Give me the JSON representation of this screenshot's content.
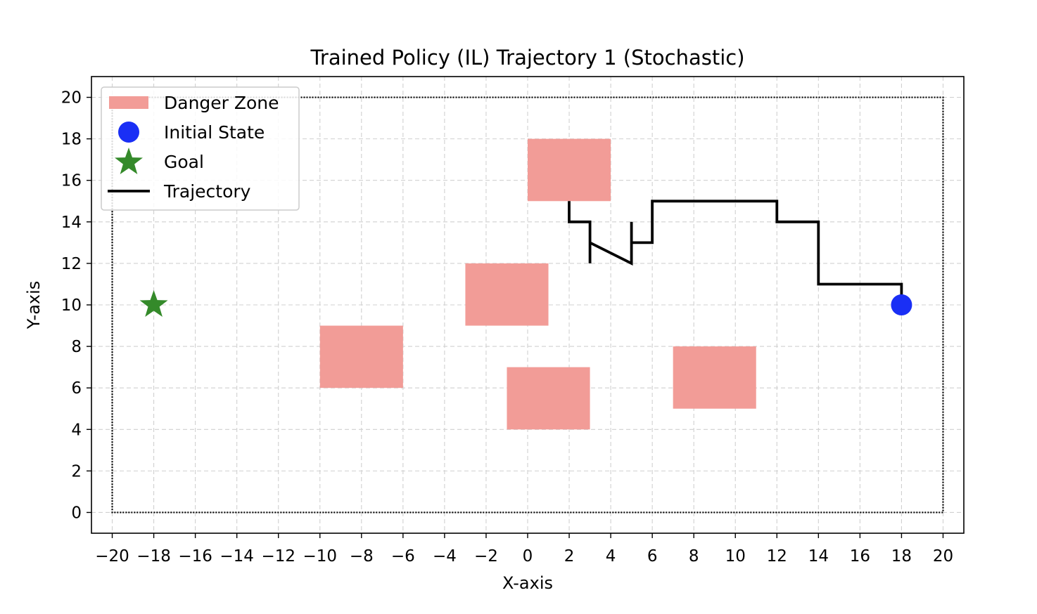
{
  "chart_data": {
    "type": "scatter",
    "title": "Trained Policy (IL) Trajectory 1 (Stochastic)",
    "xlabel": "X-axis",
    "ylabel": "Y-axis",
    "xlim": [
      -21,
      21
    ],
    "ylim": [
      -1,
      21
    ],
    "xticks": [
      -20,
      -18,
      -16,
      -14,
      -12,
      -10,
      -8,
      -6,
      -4,
      -2,
      0,
      2,
      4,
      6,
      8,
      10,
      12,
      14,
      16,
      18,
      20
    ],
    "yticks": [
      0,
      2,
      4,
      6,
      8,
      10,
      12,
      14,
      16,
      18,
      20
    ],
    "xtick_labels": [
      "−20",
      "−18",
      "−16",
      "−14",
      "−12",
      "−10",
      "−8",
      "−6",
      "−4",
      "−2",
      "0",
      "2",
      "4",
      "6",
      "8",
      "10",
      "12",
      "14",
      "16",
      "18",
      "20"
    ],
    "ytick_labels": [
      "0",
      "2",
      "4",
      "6",
      "8",
      "10",
      "12",
      "14",
      "16",
      "18",
      "20"
    ],
    "grid": true,
    "legend_position": "top-left",
    "boundary": {
      "x": [
        -20,
        20
      ],
      "y": [
        0,
        20
      ]
    },
    "danger_zones": [
      {
        "x": 0,
        "y": 15,
        "width": 4,
        "height": 3
      },
      {
        "x": -3,
        "y": 9,
        "width": 4,
        "height": 3
      },
      {
        "x": -10,
        "y": 6,
        "width": 4,
        "height": 3
      },
      {
        "x": -1,
        "y": 4,
        "width": 4,
        "height": 3
      },
      {
        "x": 7,
        "y": 5,
        "width": 4,
        "height": 3
      }
    ],
    "initial_state": {
      "x": 18,
      "y": 10
    },
    "goal": {
      "x": -18,
      "y": 10
    },
    "trajectory": {
      "x": [
        18,
        18,
        14,
        14,
        12,
        12,
        6,
        6,
        5,
        5,
        5,
        3,
        3,
        3,
        2,
        2
      ],
      "y": [
        10,
        11,
        11,
        14,
        14,
        15,
        15,
        13,
        13,
        14,
        12,
        13,
        12,
        14,
        14,
        15
      ]
    },
    "legend": [
      {
        "label": "Danger Zone",
        "marker": "rect"
      },
      {
        "label": "Initial State",
        "marker": "circle"
      },
      {
        "label": "Goal",
        "marker": "star"
      },
      {
        "label": "Trajectory",
        "marker": "line"
      }
    ],
    "colors": {
      "danger": "#f29c97",
      "initial": "#1a2ff5",
      "goal": "#348a2a",
      "trajectory": "#000000",
      "grid": "#d0d0d0"
    }
  }
}
